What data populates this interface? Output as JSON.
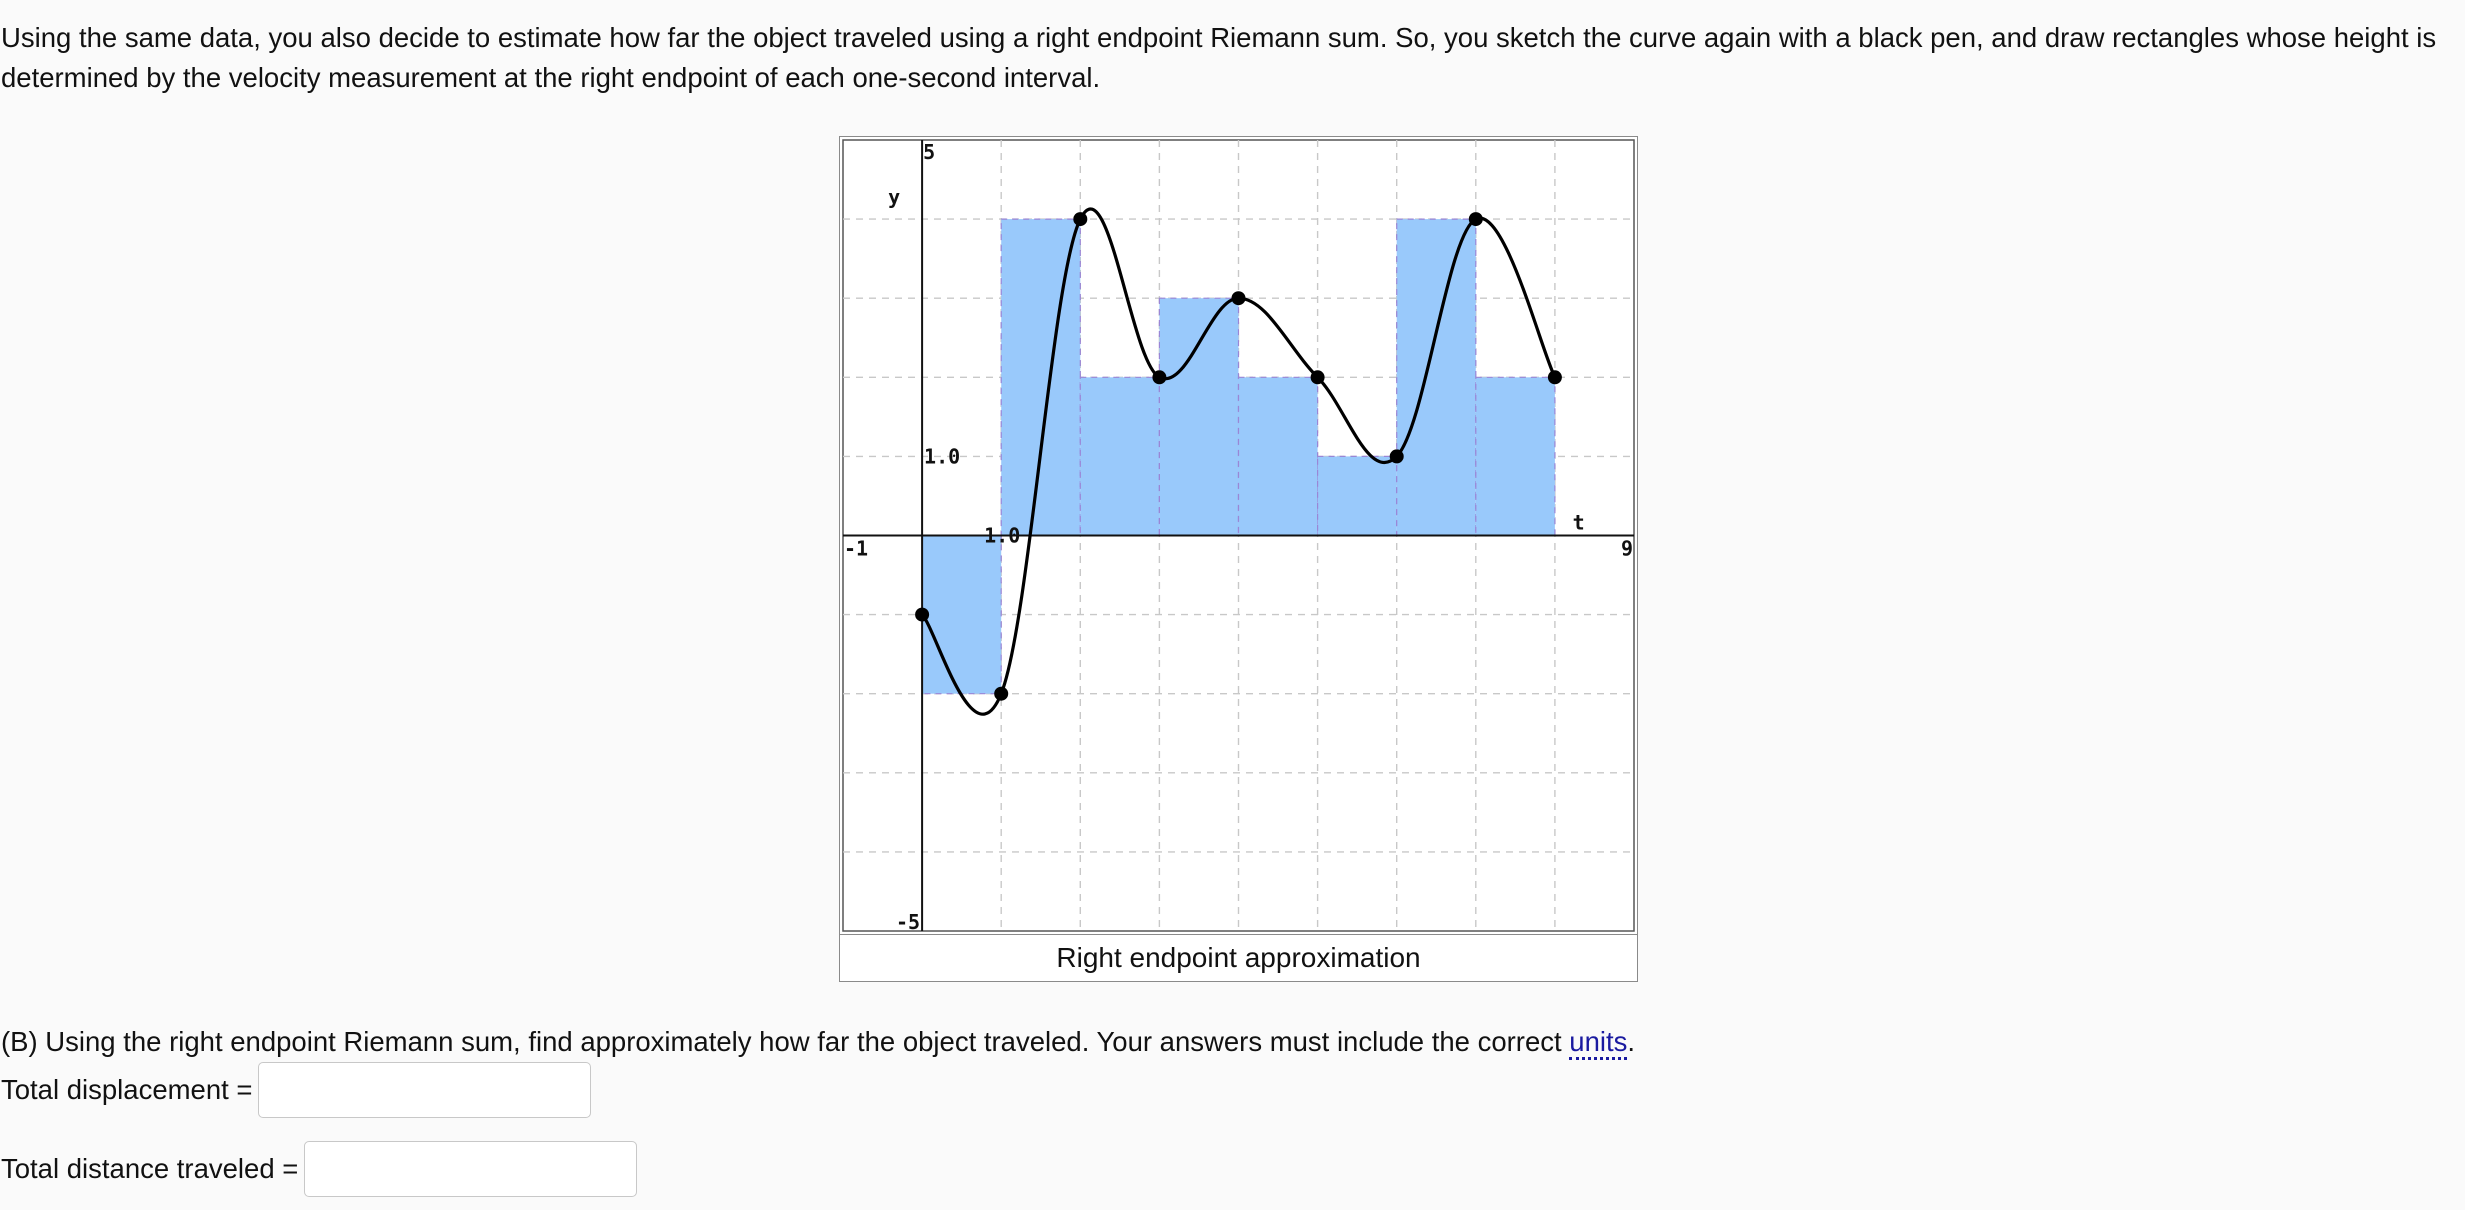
{
  "prompt": {
    "text": "Using the same data, you also decide to estimate how far the object traveled using a right endpoint Riemann sum. So, you sketch the curve again with a black pen, and draw rectangles whose height is determined by the velocity measurement at the right endpoint of each one-second interval."
  },
  "figure": {
    "caption": "Right endpoint approximation",
    "fill_color": "#99c9fb",
    "grid_color": "#c8c8c8"
  },
  "chart_data": {
    "type": "line",
    "xlabel": "t",
    "ylabel": "y",
    "xlim": [
      -1,
      9
    ],
    "ylim": [
      -5,
      5
    ],
    "x_tick_labels": {
      "xmin": "-1",
      "xmax": "9",
      "xtick": "1.0"
    },
    "y_tick_labels": {
      "ymax": "5",
      "ymin": "-5",
      "ytick": "1.0"
    },
    "grid": true,
    "points": [
      {
        "t": 0,
        "v": -1
      },
      {
        "t": 1,
        "v": -2
      },
      {
        "t": 2,
        "v": 4
      },
      {
        "t": 3,
        "v": 2
      },
      {
        "t": 4,
        "v": 3
      },
      {
        "t": 5,
        "v": 2
      },
      {
        "t": 6,
        "v": 1
      },
      {
        "t": 7,
        "v": 4
      },
      {
        "t": 8,
        "v": 2
      }
    ],
    "rectangles": [
      {
        "t0": 0,
        "t1": 1,
        "height": -2
      },
      {
        "t0": 1,
        "t1": 2,
        "height": 4
      },
      {
        "t0": 2,
        "t1": 3,
        "height": 2
      },
      {
        "t0": 3,
        "t1": 4,
        "height": 3
      },
      {
        "t0": 4,
        "t1": 5,
        "height": 2
      },
      {
        "t0": 5,
        "t1": 6,
        "height": 1
      },
      {
        "t0": 6,
        "t1": 7,
        "height": 4
      },
      {
        "t0": 7,
        "t1": 8,
        "height": 2
      }
    ]
  },
  "part_b": {
    "text_before": "(B) Using the right endpoint Riemann sum, find approximately how far the object traveled. Your answers must include the correct ",
    "link_text": "units",
    "text_after": "."
  },
  "answers": {
    "displacement_label": "Total displacement =",
    "displacement_value": "",
    "distance_label": "Total distance traveled =",
    "distance_value": ""
  }
}
